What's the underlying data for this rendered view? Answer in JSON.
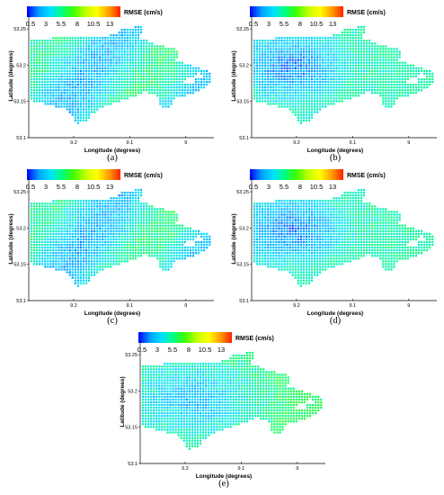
{
  "chart_data": [
    {
      "type": "heatmap",
      "panel_label": "(a)",
      "colorbar": {
        "title": "RMSE (cm/s)",
        "ticks": [
          "0.5",
          "3",
          "5.5",
          "8",
          "10.5",
          "13"
        ],
        "range": [
          0.5,
          15
        ]
      },
      "xlabel": "Longitude (degrees)",
      "ylabel": "Latitude (degrees)",
      "x_ticks": [
        "9.2",
        "9.1",
        "9"
      ],
      "y_ticks": [
        "53.25",
        "53.2",
        "53.15",
        "53.1"
      ],
      "ylim": [
        53.1,
        53.27
      ],
      "xlim": [
        9.28,
        8.95
      ],
      "pattern": "mixed-green-blue",
      "value_range_shown": [
        1.5,
        7.5
      ]
    },
    {
      "type": "heatmap",
      "panel_label": "(b)",
      "colorbar": {
        "title": "RMSE (cm/s)",
        "ticks": [
          "0.5",
          "3",
          "5.5",
          "8",
          "10.5",
          "13"
        ],
        "range": [
          0.5,
          15
        ]
      },
      "xlabel": "Longitude (degrees)",
      "ylabel": "Latitude (degrees)",
      "x_ticks": [
        "9.2",
        "9.1",
        "9"
      ],
      "y_ticks": [
        "53.25",
        "53.2",
        "53.15",
        "53.1"
      ],
      "ylim": [
        53.1,
        53.27
      ],
      "xlim": [
        9.28,
        8.95
      ],
      "pattern": "blue-west",
      "value_range_shown": [
        0.5,
        6
      ]
    },
    {
      "type": "heatmap",
      "panel_label": "(c)",
      "colorbar": {
        "title": "RMSE (cm/s)",
        "ticks": [
          "0.5",
          "3",
          "5.5",
          "8",
          "10.5",
          "13"
        ],
        "range": [
          0.5,
          15
        ]
      },
      "xlabel": "Longitude (degrees)",
      "ylabel": "Latitude (degrees)",
      "x_ticks": [
        "9.2",
        "9.1",
        "9"
      ],
      "y_ticks": [
        "53.25",
        "53.2",
        "53.15",
        "53.1"
      ],
      "ylim": [
        53.1,
        53.27
      ],
      "xlim": [
        9.28,
        8.95
      ],
      "pattern": "mixed-green-blue",
      "value_range_shown": [
        1.5,
        7.5
      ]
    },
    {
      "type": "heatmap",
      "panel_label": "(d)",
      "colorbar": {
        "title": "RMSE (cm/s)",
        "ticks": [
          "0.5",
          "3",
          "5.5",
          "8",
          "10.5",
          "13"
        ],
        "range": [
          0.5,
          15
        ]
      },
      "xlabel": "Longitude (degrees)",
      "ylabel": "Latitude (degrees)",
      "x_ticks": [
        "9.2",
        "9.1",
        "9"
      ],
      "y_ticks": [
        "53.25",
        "53.2",
        "53.15",
        "53.1"
      ],
      "ylim": [
        53.1,
        53.27
      ],
      "xlim": [
        9.28,
        8.95
      ],
      "pattern": "blue-west",
      "value_range_shown": [
        0.5,
        6
      ]
    },
    {
      "type": "heatmap",
      "panel_label": "(e)",
      "colorbar": {
        "title": "RMSE (cm/s)",
        "ticks": [
          "0.5",
          "3",
          "5.5",
          "8",
          "10.5",
          "13"
        ],
        "range": [
          0.5,
          15
        ]
      },
      "xlabel": "Longitude (degrees)",
      "ylabel": "Latitude (degrees)",
      "x_ticks": [
        "9.2",
        "9.1",
        "9"
      ],
      "y_ticks": [
        "53.25",
        "53.2",
        "53.15",
        "53.1"
      ],
      "ylim": [
        53.1,
        53.27
      ],
      "xlim": [
        9.28,
        8.95
      ],
      "pattern": "blue-centre",
      "value_range_shown": [
        1,
        7
      ]
    }
  ],
  "colors": {
    "colorbar_stops": [
      "#0000ff",
      "#00a0ff",
      "#00e0ff",
      "#00ff80",
      "#40ff00",
      "#c0ff00",
      "#ffff00",
      "#ffa000",
      "#ff2000"
    ]
  }
}
